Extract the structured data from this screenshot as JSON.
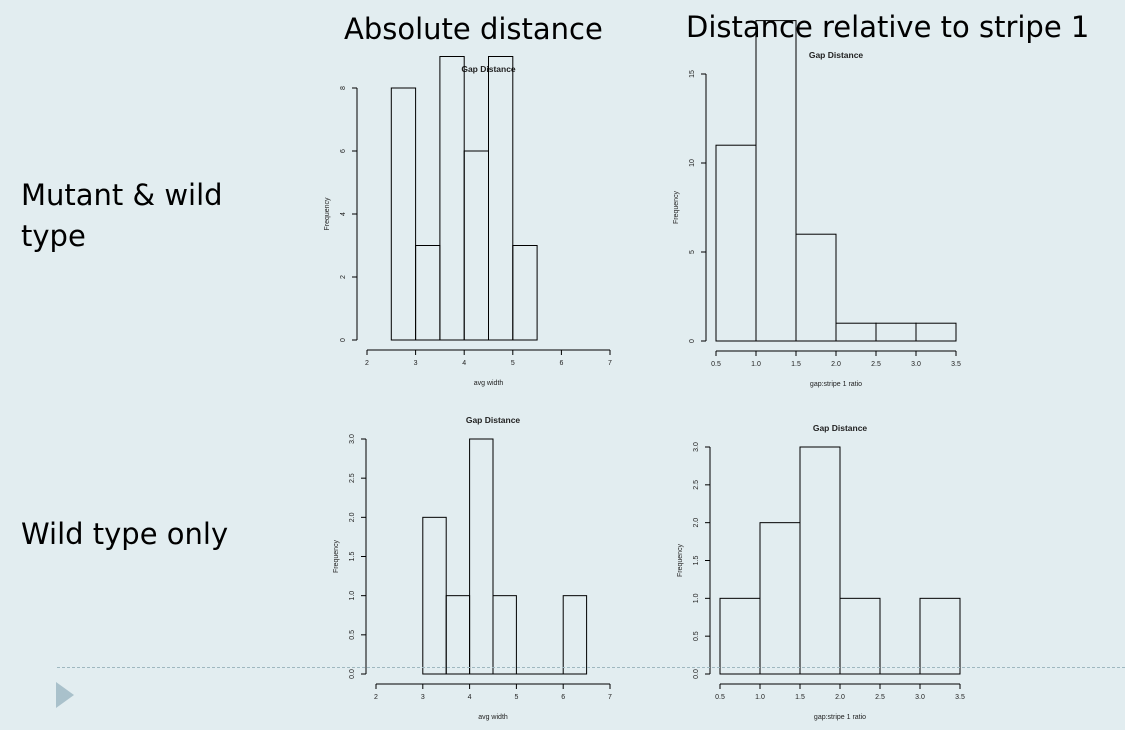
{
  "headings": {
    "col1": "Absolute distance",
    "col2": "Distance relative to stripe 1",
    "row1": [
      "Mutant & wild",
      "type"
    ],
    "row2": "Wild type only"
  },
  "colors": {
    "background": "#e2edf0",
    "bar_stroke": "#000000",
    "axis": "#000000"
  },
  "chart_data": [
    {
      "type": "bar",
      "subtype": "histogram",
      "title": "Gap Distance",
      "xlabel": "avg width",
      "ylabel": "Frequency",
      "bin_edges": [
        2.5,
        3,
        3.5,
        4,
        4.5,
        5,
        5.5
      ],
      "values": [
        8,
        3,
        9,
        6,
        9,
        3
      ],
      "xlim": [
        2,
        7
      ],
      "x_ticks": [
        2,
        3,
        4,
        5,
        6,
        7
      ],
      "ylim": [
        0,
        8
      ],
      "y_ticks": [
        0,
        2,
        4,
        6,
        8
      ],
      "grid": false
    },
    {
      "type": "bar",
      "subtype": "histogram",
      "title": "Gap Distance",
      "xlabel": "gap:stripe 1 ratio",
      "ylabel": "Frequency",
      "bin_edges": [
        0.5,
        1,
        1.5,
        2,
        2.5,
        3,
        3.5
      ],
      "values": [
        11,
        18,
        6,
        1,
        1,
        1
      ],
      "xlim": [
        0.5,
        3.5
      ],
      "x_ticks": [
        0.5,
        1.0,
        1.5,
        2.0,
        2.5,
        3.0,
        3.5
      ],
      "ylim": [
        0,
        15
      ],
      "y_ticks": [
        0,
        5,
        10,
        15
      ],
      "grid": false
    },
    {
      "type": "bar",
      "subtype": "histogram",
      "title": "Gap Distance",
      "xlabel": "avg width",
      "ylabel": "Frequency",
      "bin_edges": [
        3,
        3.5,
        4,
        4.5,
        5,
        5.5,
        6,
        6.5
      ],
      "values": [
        2,
        1,
        3,
        1,
        0,
        0,
        1
      ],
      "xlim": [
        2,
        7
      ],
      "x_ticks": [
        2,
        3,
        4,
        5,
        6,
        7
      ],
      "ylim": [
        0,
        3
      ],
      "y_ticks": [
        0.0,
        0.5,
        1.0,
        1.5,
        2.0,
        2.5,
        3.0
      ],
      "grid": false
    },
    {
      "type": "bar",
      "subtype": "histogram",
      "title": "Gap Distance",
      "xlabel": "gap:stripe 1 ratio",
      "ylabel": "Frequency",
      "bin_edges": [
        0.5,
        1,
        1.5,
        2,
        2.5,
        3,
        3.5
      ],
      "values": [
        1,
        2,
        3,
        1,
        0,
        1
      ],
      "xlim": [
        0.5,
        3.5
      ],
      "x_ticks": [
        0.5,
        1.0,
        1.5,
        2.0,
        2.5,
        3.0,
        3.5
      ],
      "ylim": [
        0,
        3
      ],
      "y_ticks": [
        0.0,
        0.5,
        1.0,
        1.5,
        2.0,
        2.5,
        3.0
      ],
      "grid": false
    }
  ]
}
